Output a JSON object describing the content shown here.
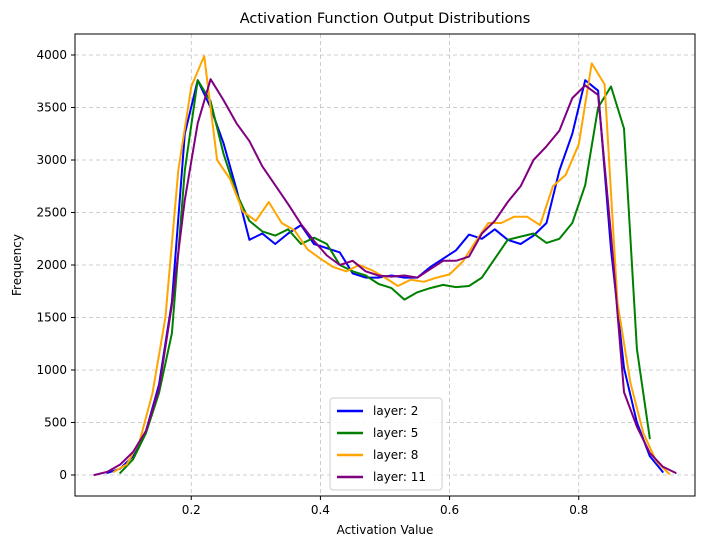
{
  "chart_data": {
    "type": "line",
    "title": "Activation Function Output Distributions",
    "xlabel": "Activation Value",
    "ylabel": "Frequency",
    "xlim": [
      0.02,
      0.98
    ],
    "ylim": [
      -200,
      4200
    ],
    "xticks": [
      0.2,
      0.4,
      0.6,
      0.8
    ],
    "xtick_labels": [
      "0.2",
      "0.4",
      "0.6",
      "0.8"
    ],
    "yticks": [
      0,
      500,
      1000,
      1500,
      2000,
      2500,
      3000,
      3500,
      4000
    ],
    "ytick_labels": [
      "0",
      "500",
      "1000",
      "1500",
      "2000",
      "2500",
      "3000",
      "3500",
      "4000"
    ],
    "grid": true,
    "legend_position": "lower-center",
    "series": [
      {
        "name": "layer: 2",
        "color": "#0000ff",
        "x": [
          0.07,
          0.09,
          0.11,
          0.13,
          0.15,
          0.17,
          0.19,
          0.21,
          0.23,
          0.25,
          0.27,
          0.29,
          0.31,
          0.33,
          0.35,
          0.37,
          0.39,
          0.41,
          0.43,
          0.45,
          0.47,
          0.49,
          0.51,
          0.53,
          0.55,
          0.57,
          0.59,
          0.61,
          0.63,
          0.65,
          0.67,
          0.69,
          0.71,
          0.73,
          0.75,
          0.77,
          0.79,
          0.81,
          0.83,
          0.85,
          0.87,
          0.89,
          0.91,
          0.93
        ],
        "values": [
          20,
          60,
          180,
          420,
          860,
          1650,
          3250,
          3760,
          3500,
          3160,
          2720,
          2240,
          2300,
          2200,
          2300,
          2380,
          2200,
          2160,
          2120,
          1920,
          1880,
          1880,
          1900,
          1880,
          1880,
          1980,
          2060,
          2140,
          2290,
          2250,
          2340,
          2240,
          2200,
          2280,
          2400,
          2900,
          3250,
          3760,
          3660,
          2150,
          1020,
          500,
          180,
          30
        ]
      },
      {
        "name": "layer: 5",
        "color": "#008000",
        "x": [
          0.09,
          0.11,
          0.13,
          0.15,
          0.17,
          0.19,
          0.21,
          0.23,
          0.25,
          0.27,
          0.29,
          0.31,
          0.33,
          0.35,
          0.37,
          0.39,
          0.41,
          0.43,
          0.45,
          0.47,
          0.49,
          0.51,
          0.53,
          0.55,
          0.57,
          0.59,
          0.61,
          0.63,
          0.65,
          0.67,
          0.69,
          0.71,
          0.73,
          0.75,
          0.77,
          0.79,
          0.81,
          0.83,
          0.85,
          0.87,
          0.89,
          0.91
        ],
        "values": [
          20,
          150,
          400,
          780,
          1350,
          2900,
          3760,
          3560,
          3060,
          2680,
          2420,
          2320,
          2280,
          2340,
          2200,
          2260,
          2200,
          2000,
          1940,
          1900,
          1820,
          1780,
          1670,
          1740,
          1780,
          1810,
          1790,
          1800,
          1880,
          2060,
          2240,
          2270,
          2300,
          2210,
          2250,
          2400,
          2760,
          3500,
          3700,
          3300,
          1200,
          350
        ]
      },
      {
        "name": "layer: 8",
        "color": "#ffa500",
        "x": [
          0.08,
          0.1,
          0.12,
          0.14,
          0.16,
          0.18,
          0.2,
          0.22,
          0.24,
          0.26,
          0.28,
          0.3,
          0.32,
          0.34,
          0.36,
          0.38,
          0.4,
          0.42,
          0.44,
          0.46,
          0.48,
          0.5,
          0.52,
          0.54,
          0.56,
          0.58,
          0.6,
          0.62,
          0.64,
          0.66,
          0.68,
          0.7,
          0.72,
          0.74,
          0.76,
          0.78,
          0.8,
          0.82,
          0.84,
          0.86,
          0.88,
          0.9,
          0.92,
          0.94
        ],
        "values": [
          30,
          100,
          320,
          780,
          1500,
          2900,
          3700,
          3990,
          3000,
          2820,
          2510,
          2420,
          2600,
          2400,
          2330,
          2150,
          2060,
          1980,
          1940,
          2000,
          1950,
          1880,
          1800,
          1860,
          1840,
          1880,
          1910,
          2030,
          2220,
          2400,
          2400,
          2460,
          2460,
          2380,
          2750,
          2860,
          3150,
          3920,
          3720,
          1640,
          880,
          400,
          130,
          10
        ]
      },
      {
        "name": "layer: 11",
        "color": "#800080",
        "x": [
          0.05,
          0.07,
          0.09,
          0.11,
          0.13,
          0.15,
          0.17,
          0.19,
          0.21,
          0.23,
          0.25,
          0.27,
          0.29,
          0.31,
          0.33,
          0.35,
          0.37,
          0.39,
          0.41,
          0.43,
          0.45,
          0.47,
          0.49,
          0.51,
          0.53,
          0.55,
          0.57,
          0.59,
          0.61,
          0.63,
          0.65,
          0.67,
          0.69,
          0.71,
          0.73,
          0.75,
          0.77,
          0.79,
          0.81,
          0.83,
          0.85,
          0.87,
          0.89,
          0.91,
          0.93,
          0.95
        ],
        "values": [
          0,
          30,
          100,
          220,
          420,
          820,
          1620,
          2620,
          3350,
          3770,
          3570,
          3350,
          3180,
          2940,
          2760,
          2580,
          2390,
          2230,
          2090,
          2000,
          2040,
          1940,
          1900,
          1890,
          1900,
          1880,
          1960,
          2040,
          2040,
          2080,
          2300,
          2420,
          2600,
          2750,
          3000,
          3130,
          3280,
          3590,
          3710,
          3620,
          2290,
          790,
          460,
          210,
          80,
          20
        ]
      }
    ]
  }
}
